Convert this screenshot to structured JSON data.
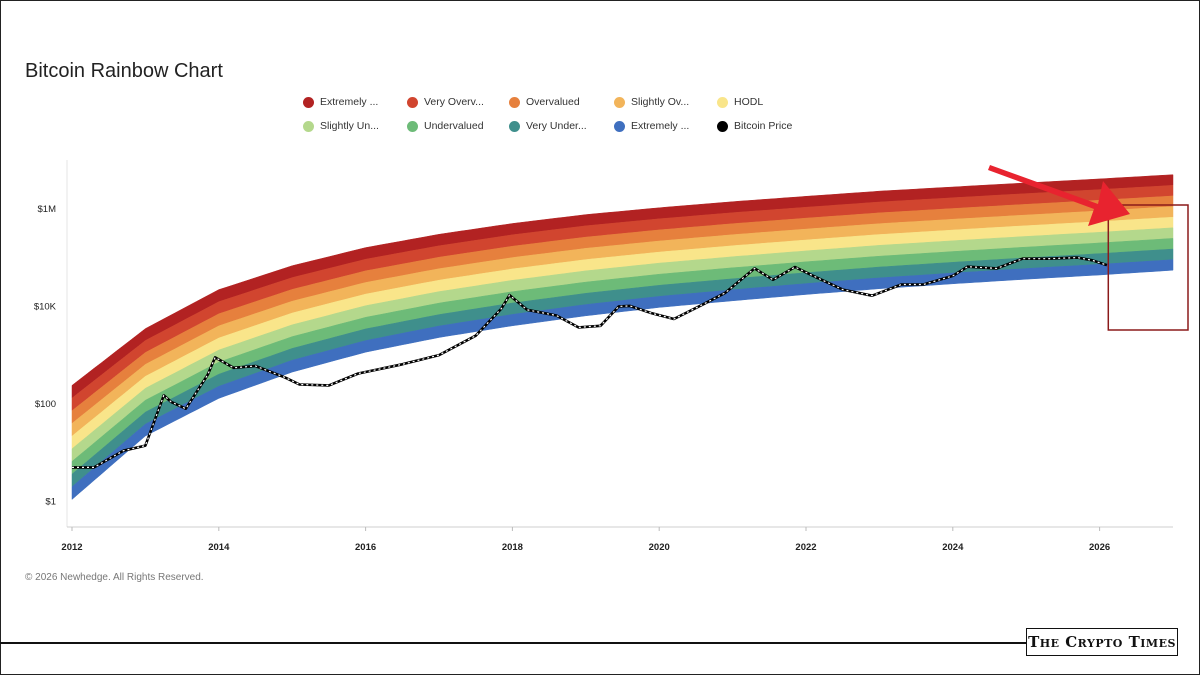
{
  "chart_data": {
    "type": "area",
    "title": "Bitcoin Rainbow Chart",
    "y_scale": "log",
    "ylim": [
      0.3,
      10000000
    ],
    "y_ticks": [
      {
        "value": 1,
        "label": "$1"
      },
      {
        "value": 100,
        "label": "$100"
      },
      {
        "value": 10000,
        "label": "$10K"
      },
      {
        "value": 1000000,
        "label": "$1M"
      }
    ],
    "x_ticks": [
      "2012",
      "2014",
      "2016",
      "2018",
      "2020",
      "2022",
      "2024",
      "2026"
    ],
    "xlim": [
      2012.0,
      2027.0
    ],
    "grid": false,
    "legend_placement": "top",
    "bands": {
      "x": [
        2012.0,
        2013.0,
        2014.0,
        2015.0,
        2016.0,
        2017.0,
        2018.0,
        2019.0,
        2020.0,
        2021.0,
        2022.0,
        2023.0,
        2024.0,
        2025.0,
        2026.0,
        2027.0
      ],
      "lower": [
        1.1,
        22,
        130,
        450,
        1150,
        2300,
        4000,
        6400,
        9500,
        13000,
        17500,
        23000,
        29000,
        36000,
        44000,
        55000
      ],
      "upper": [
        240,
        3500,
        22000,
        68000,
        160000,
        300000,
        500000,
        760000,
        1050000,
        1400000,
        1800000,
        2300000,
        2800000,
        3400000,
        4100000,
        5000000
      ]
    },
    "series": [
      {
        "name": "Extremely ...",
        "color": "#b22222"
      },
      {
        "name": "Very Overv...",
        "color": "#d1452f"
      },
      {
        "name": "Overvalued",
        "color": "#e6803d"
      },
      {
        "name": "Slightly Ov...",
        "color": "#f2b45a"
      },
      {
        "name": "HODL",
        "color": "#f9e58a"
      },
      {
        "name": "Slightly Un...",
        "color": "#b4d88c"
      },
      {
        "name": "Undervalued",
        "color": "#6dbb78"
      },
      {
        "name": "Very Under...",
        "color": "#3f8f8c"
      },
      {
        "name": "Extremely ...",
        "color": "#3f6fbf"
      },
      {
        "name": "Bitcoin Price",
        "color": "#000000"
      }
    ],
    "price": {
      "x": [
        2012.0,
        2012.3,
        2012.7,
        2013.0,
        2013.25,
        2013.35,
        2013.55,
        2013.85,
        2013.95,
        2014.2,
        2014.5,
        2014.9,
        2015.1,
        2015.5,
        2015.9,
        2016.5,
        2017.0,
        2017.5,
        2017.85,
        2017.96,
        2018.2,
        2018.6,
        2018.9,
        2019.2,
        2019.45,
        2019.6,
        2019.9,
        2020.2,
        2020.6,
        2020.9,
        2021.3,
        2021.55,
        2021.85,
        2022.1,
        2022.5,
        2022.9,
        2023.3,
        2023.6,
        2024.0,
        2024.2,
        2024.6,
        2024.95,
        2025.3,
        2025.7,
        2025.9,
        2026.1
      ],
      "y": [
        5,
        5,
        11,
        14,
        150,
        110,
        80,
        400,
        900,
        550,
        600,
        350,
        250,
        240,
        420,
        650,
        1000,
        2500,
        9000,
        17000,
        8500,
        6500,
        3700,
        4000,
        10000,
        10200,
        7200,
        5500,
        11000,
        19000,
        60000,
        35000,
        64000,
        42000,
        22000,
        16500,
        28000,
        28000,
        42000,
        65000,
        60000,
        95000,
        95000,
        100000,
        88000,
        70000
      ]
    }
  },
  "highlight": {
    "start": 2026.5,
    "end": 2027.0,
    "color": "#8b1a1a"
  },
  "arrow": {
    "color": "#e8232f"
  },
  "copyright": "© 2026 Newhedge. All Rights Reserved.",
  "brand": {
    "logo_text": "The Crypto Times"
  }
}
